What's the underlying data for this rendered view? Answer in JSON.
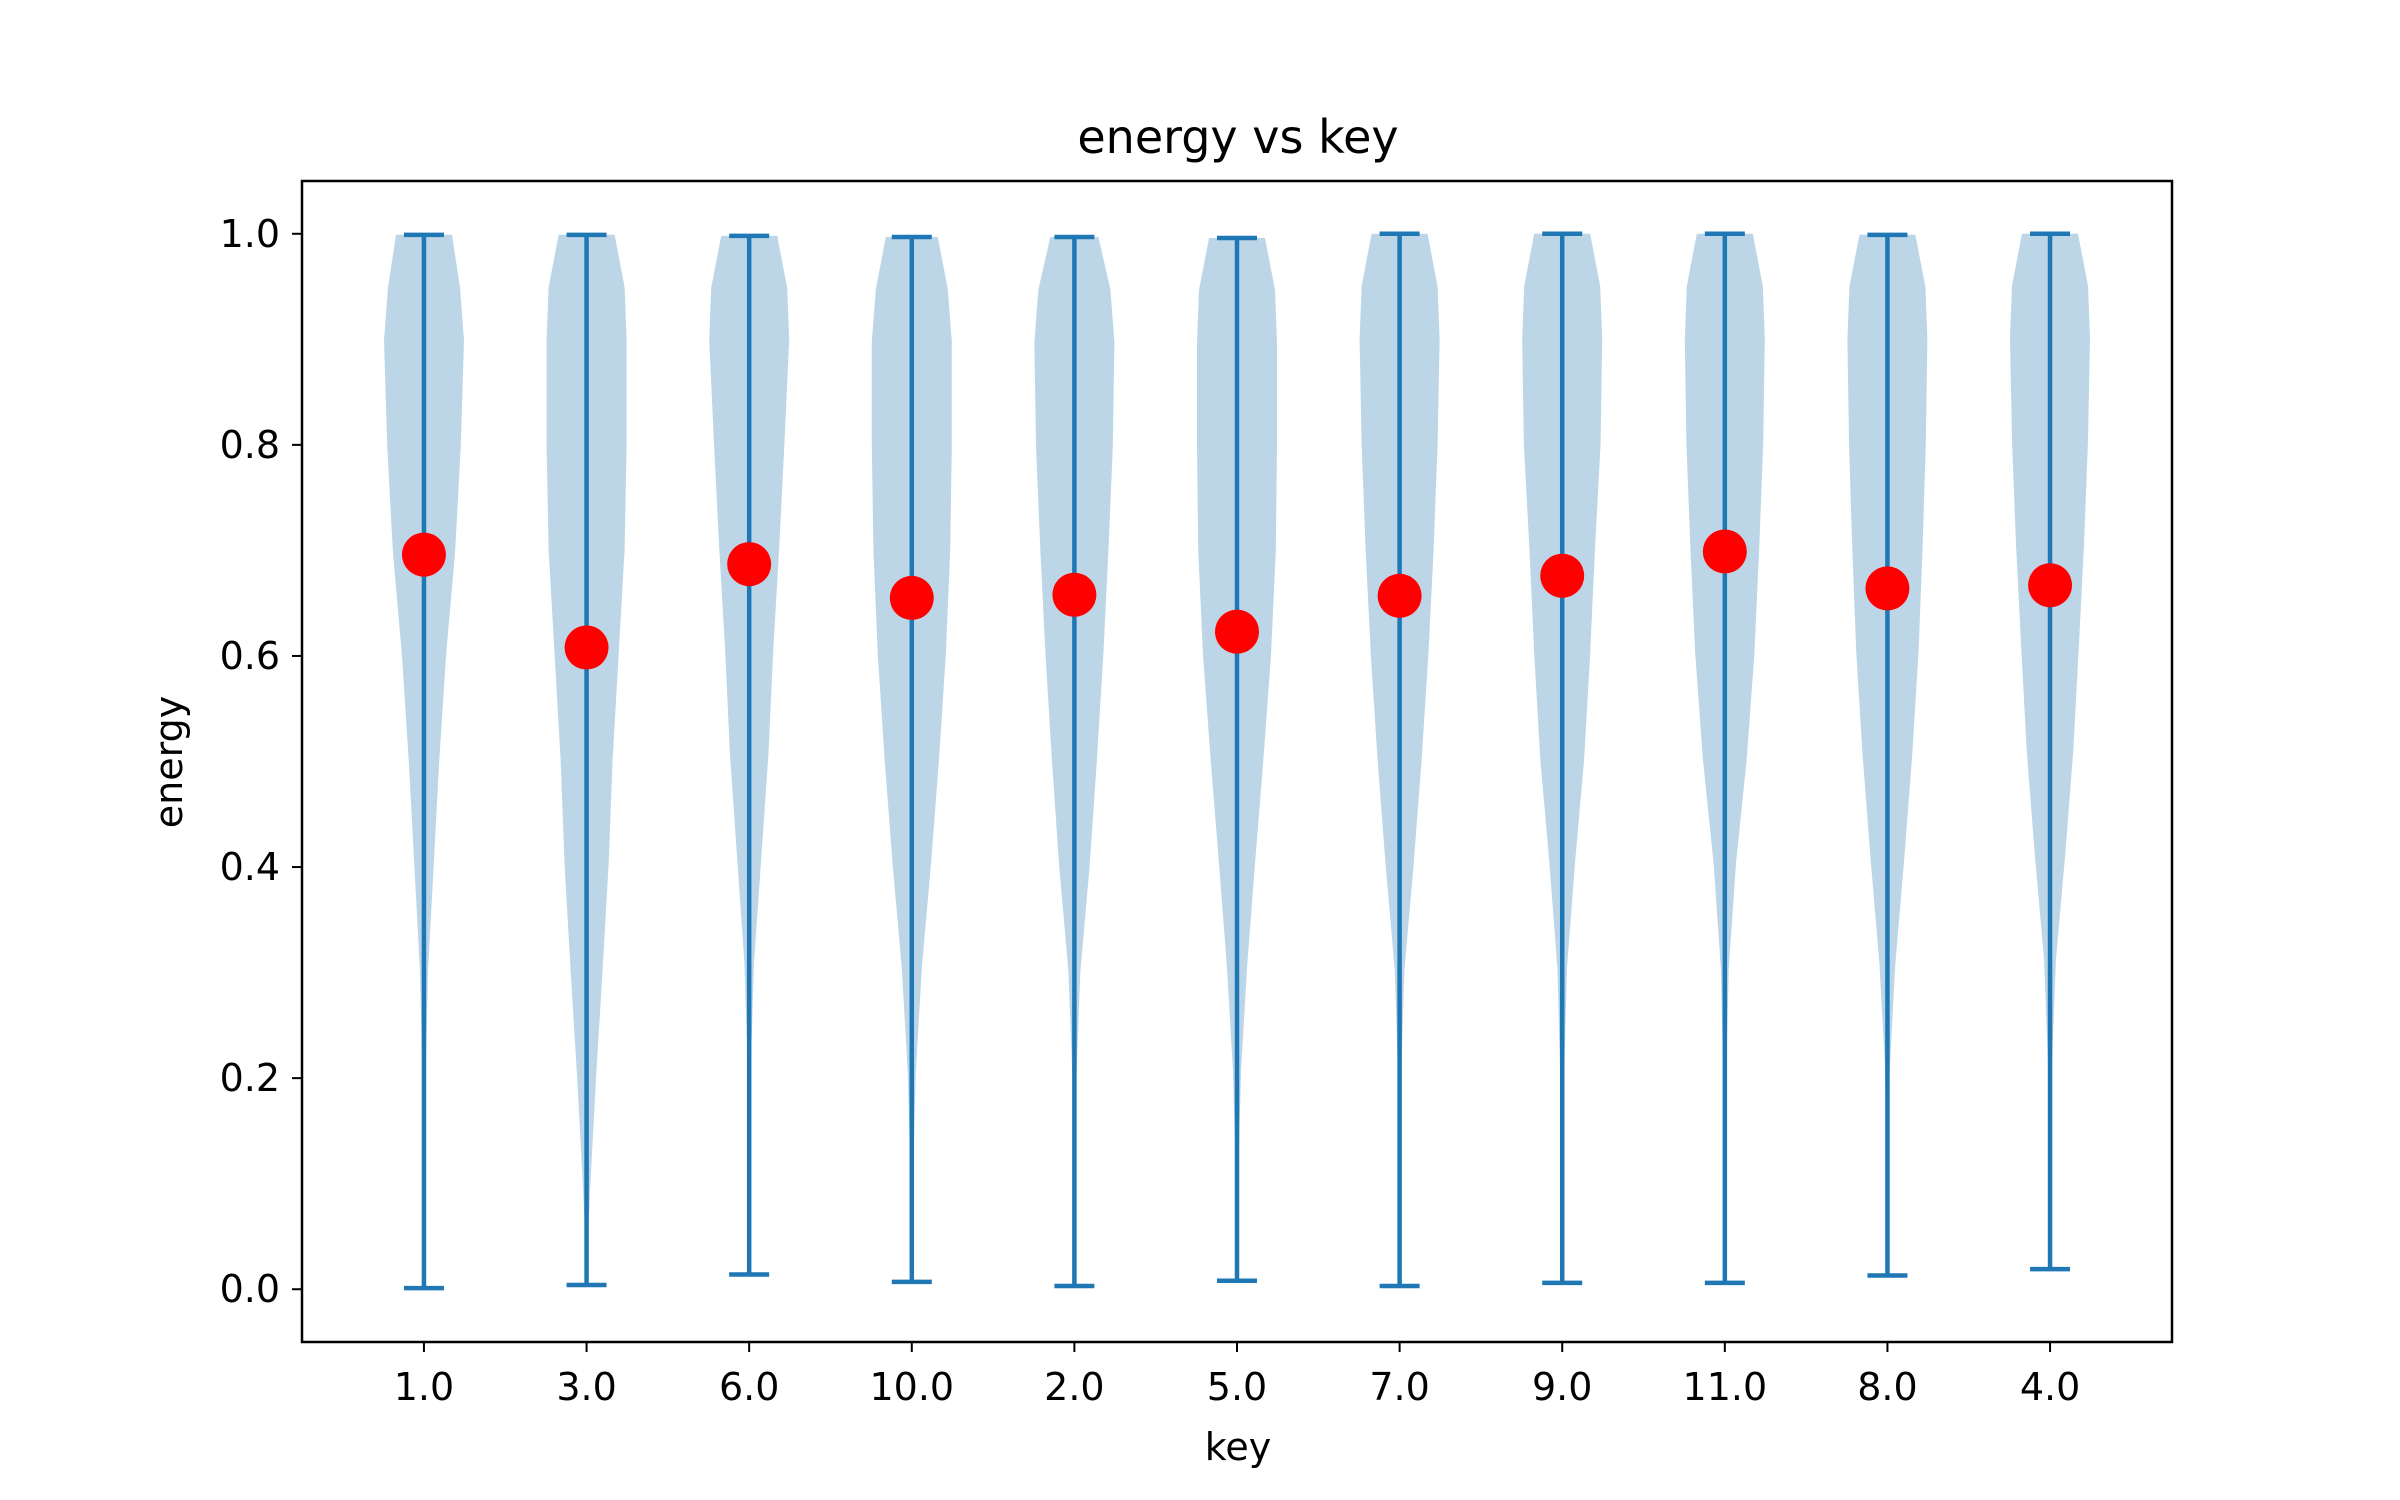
{
  "chart_data": {
    "type": "violin",
    "title": "energy vs key",
    "xlabel": "key",
    "ylabel": "energy",
    "ylim": [
      -0.05,
      1.05
    ],
    "yticks": [
      0.0,
      0.2,
      0.4,
      0.6,
      0.8,
      1.0
    ],
    "ytick_labels": [
      "0.0",
      "0.2",
      "0.4",
      "0.6",
      "0.8",
      "1.0"
    ],
    "grid": false,
    "colors": {
      "violin_fill": "#bcd6e8",
      "violin_line": "#1f77b4",
      "mean_marker": "#ff0000"
    },
    "categories": [
      "1.0",
      "3.0",
      "6.0",
      "10.0",
      "2.0",
      "5.0",
      "7.0",
      "9.0",
      "11.0",
      "8.0",
      "4.0"
    ],
    "mins": [
      0.001,
      0.004,
      0.014,
      0.007,
      0.003,
      0.008,
      0.003,
      0.006,
      0.006,
      0.013,
      0.019
    ],
    "maxs": [
      0.999,
      0.999,
      0.998,
      0.997,
      0.997,
      0.996,
      1.0,
      1.0,
      1.0,
      0.999,
      1.0
    ],
    "means": [
      0.696,
      0.608,
      0.687,
      0.655,
      0.658,
      0.623,
      0.657,
      0.676,
      0.699,
      0.664,
      0.667
    ],
    "density_levels": [
      0.0,
      0.05,
      0.1,
      0.2,
      0.3,
      0.4,
      0.5,
      0.6,
      0.7,
      0.8,
      0.9,
      0.95,
      1.0
    ],
    "density_profiles": [
      [
        0.0,
        0.01,
        0.02,
        0.04,
        0.1,
        0.24,
        0.38,
        0.55,
        0.78,
        0.92,
        1.0,
        0.9,
        0.7
      ],
      [
        0.0,
        0.04,
        0.1,
        0.24,
        0.4,
        0.55,
        0.65,
        0.8,
        0.95,
        1.0,
        1.0,
        0.95,
        0.7
      ],
      [
        0.0,
        0.01,
        0.02,
        0.04,
        0.12,
        0.3,
        0.48,
        0.6,
        0.75,
        0.88,
        1.0,
        0.95,
        0.7
      ],
      [
        0.0,
        0.02,
        0.03,
        0.1,
        0.25,
        0.48,
        0.68,
        0.85,
        0.96,
        1.0,
        1.0,
        0.9,
        0.65
      ],
      [
        0.0,
        0.01,
        0.02,
        0.05,
        0.15,
        0.38,
        0.56,
        0.72,
        0.85,
        0.96,
        1.0,
        0.9,
        0.6
      ],
      [
        0.0,
        0.02,
        0.03,
        0.1,
        0.25,
        0.45,
        0.66,
        0.85,
        0.97,
        1.0,
        1.0,
        0.95,
        0.7
      ],
      [
        0.0,
        0.01,
        0.02,
        0.04,
        0.12,
        0.35,
        0.55,
        0.72,
        0.85,
        0.95,
        1.0,
        0.95,
        0.7
      ],
      [
        0.0,
        0.01,
        0.02,
        0.05,
        0.12,
        0.32,
        0.55,
        0.7,
        0.82,
        0.96,
        1.0,
        0.95,
        0.7
      ],
      [
        0.0,
        0.01,
        0.02,
        0.04,
        0.1,
        0.28,
        0.55,
        0.74,
        0.86,
        0.96,
        1.0,
        0.95,
        0.7
      ],
      [
        0.0,
        0.01,
        0.02,
        0.06,
        0.2,
        0.42,
        0.62,
        0.78,
        0.88,
        0.96,
        1.0,
        0.95,
        0.7
      ],
      [
        0.0,
        0.01,
        0.02,
        0.05,
        0.15,
        0.38,
        0.58,
        0.72,
        0.85,
        0.95,
        1.0,
        0.95,
        0.7
      ]
    ]
  }
}
